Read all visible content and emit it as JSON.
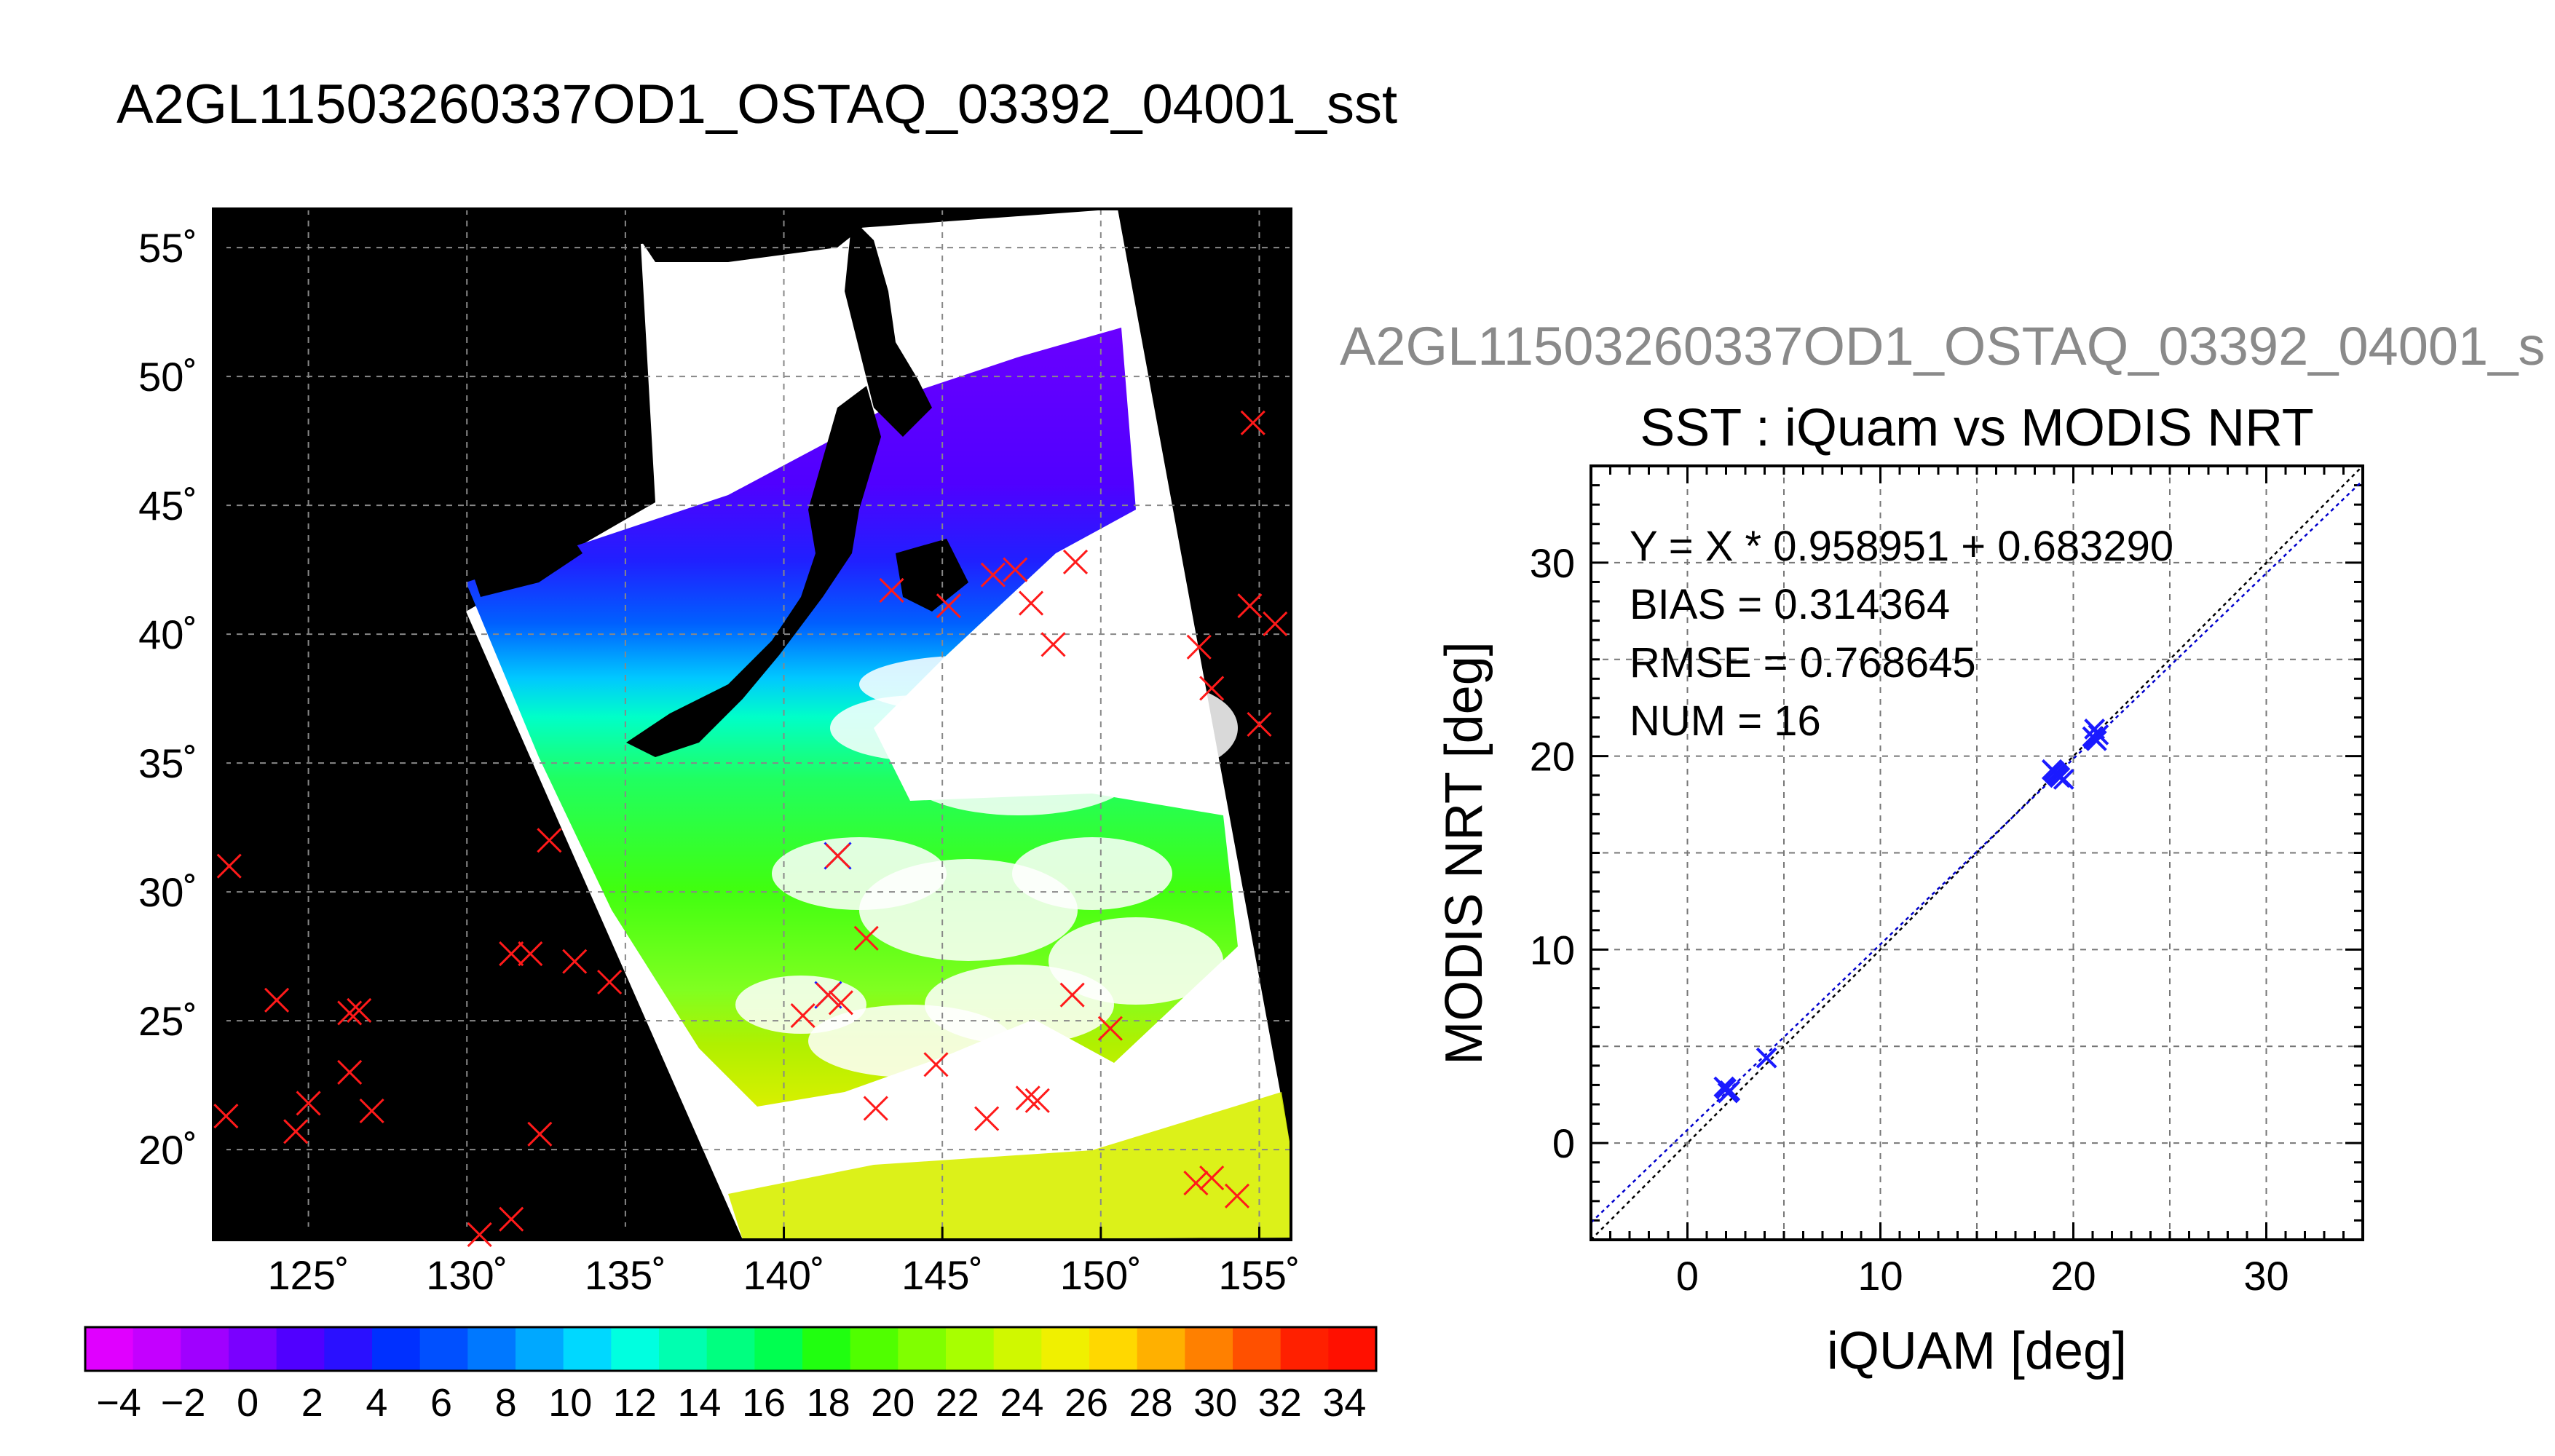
{
  "main_title": "A2GL11503260337OD1_OSTAQ_03392_04001_sst",
  "right_title": "A2GL11503260337OD1_OSTAQ_03392_04001_s",
  "colors": {
    "marker_red": "#ff1a1a",
    "marker_blue": "#1a1aff",
    "land": "#000000",
    "fit_line": "#0000cc"
  },
  "chart_data": [
    {
      "type": "map",
      "lat_ticks": [
        "55˚",
        "50˚",
        "45˚",
        "40˚",
        "35˚",
        "30˚",
        "25˚",
        "20˚"
      ],
      "lon_ticks": [
        "125˚",
        "130˚",
        "135˚",
        "140˚",
        "145˚",
        "150˚",
        "155˚"
      ],
      "lon_range": [
        122,
        156
      ],
      "lat_range": [
        16.5,
        56.5
      ],
      "grid": true,
      "red_markers": [
        [
          122.5,
          31.0
        ],
        [
          124.0,
          25.8
        ],
        [
          126.3,
          25.3
        ],
        [
          126.6,
          25.4
        ],
        [
          126.3,
          23.0
        ],
        [
          127.0,
          21.5
        ],
        [
          125.0,
          21.8
        ],
        [
          124.6,
          20.7
        ],
        [
          122.4,
          21.3
        ],
        [
          131.4,
          27.6
        ],
        [
          132.0,
          27.6
        ],
        [
          133.4,
          27.3
        ],
        [
          134.5,
          26.5
        ],
        [
          132.6,
          32.0
        ],
        [
          132.3,
          20.6
        ],
        [
          130.4,
          16.7
        ],
        [
          131.4,
          17.3
        ],
        [
          142.6,
          28.2
        ],
        [
          140.6,
          25.2
        ],
        [
          141.8,
          25.7
        ],
        [
          142.9,
          21.6
        ],
        [
          144.8,
          23.3
        ],
        [
          146.4,
          21.2
        ],
        [
          147.7,
          22.0
        ],
        [
          148.0,
          21.9
        ],
        [
          149.1,
          26.0
        ],
        [
          150.3,
          24.7
        ],
        [
          143.4,
          41.7
        ],
        [
          145.2,
          41.1
        ],
        [
          146.6,
          42.3
        ],
        [
          147.3,
          42.5
        ],
        [
          147.8,
          41.2
        ],
        [
          148.5,
          39.6
        ],
        [
          149.2,
          42.8
        ],
        [
          153.1,
          39.5
        ],
        [
          153.5,
          37.9
        ],
        [
          154.7,
          41.1
        ],
        [
          155.5,
          40.4
        ],
        [
          155.0,
          36.5
        ],
        [
          154.8,
          48.2
        ],
        [
          153.0,
          18.7
        ],
        [
          153.5,
          18.9
        ],
        [
          154.3,
          18.2
        ]
      ],
      "blue_markers": [
        [
          141.7,
          31.4
        ],
        [
          141.4,
          26.0
        ]
      ]
    },
    {
      "type": "colorbar",
      "tick_labels": [
        "−4",
        "−2",
        "0",
        "2",
        "4",
        "6",
        "8",
        "10",
        "12",
        "14",
        "16",
        "18",
        "20",
        "22",
        "24",
        "26",
        "28",
        "30",
        "32",
        "34"
      ],
      "colors": [
        "#e000ff",
        "#c400ff",
        "#a000ff",
        "#7a00ff",
        "#5000ff",
        "#2a10ff",
        "#0030ff",
        "#0050ff",
        "#0078ff",
        "#00a8ff",
        "#00d8ff",
        "#00ffe0",
        "#00ffb0",
        "#00ff80",
        "#00ff50",
        "#20ff10",
        "#50ff00",
        "#80ff00",
        "#a8ff00",
        "#d0f800",
        "#f0f000",
        "#ffd800",
        "#ffb000",
        "#ff8000",
        "#ff5000",
        "#ff2000",
        "#ff1000"
      ]
    },
    {
      "type": "scatter",
      "title": "SST : iQuam vs MODIS NRT",
      "xlabel": "iQUAM [deg]",
      "ylabel": "MODIS NRT [deg]",
      "xlim": [
        -5,
        35
      ],
      "ylim": [
        -5,
        35
      ],
      "x_ticks": [
        "0",
        "10",
        "20",
        "30"
      ],
      "y_ticks": [
        "0",
        "10",
        "20",
        "30"
      ],
      "grid": true,
      "stats": {
        "equation": "Y = X * 0.958951 + 0.683290",
        "bias": "BIAS = 0.314364",
        "rmse": "RMSE = 0.768645",
        "num": "NUM = 16"
      },
      "fit": {
        "slope": 0.958951,
        "intercept": 0.68329
      },
      "points": [
        {
          "x": 1.9,
          "y": 2.9
        },
        {
          "x": 2.1,
          "y": 2.6
        },
        {
          "x": 2.0,
          "y": 2.8
        },
        {
          "x": 4.1,
          "y": 4.4
        },
        {
          "x": 18.9,
          "y": 19.3
        },
        {
          "x": 19.1,
          "y": 19.1
        },
        {
          "x": 19.3,
          "y": 18.9
        },
        {
          "x": 19.5,
          "y": 18.8
        },
        {
          "x": 19.0,
          "y": 19.2
        },
        {
          "x": 21.1,
          "y": 21.4
        },
        {
          "x": 21.2,
          "y": 20.8
        },
        {
          "x": 21.0,
          "y": 21.0
        },
        {
          "x": 21.3,
          "y": 21.1
        },
        {
          "x": 19.2,
          "y": 19.0
        },
        {
          "x": 2.2,
          "y": 2.7
        },
        {
          "x": 21.1,
          "y": 20.9
        }
      ]
    }
  ]
}
